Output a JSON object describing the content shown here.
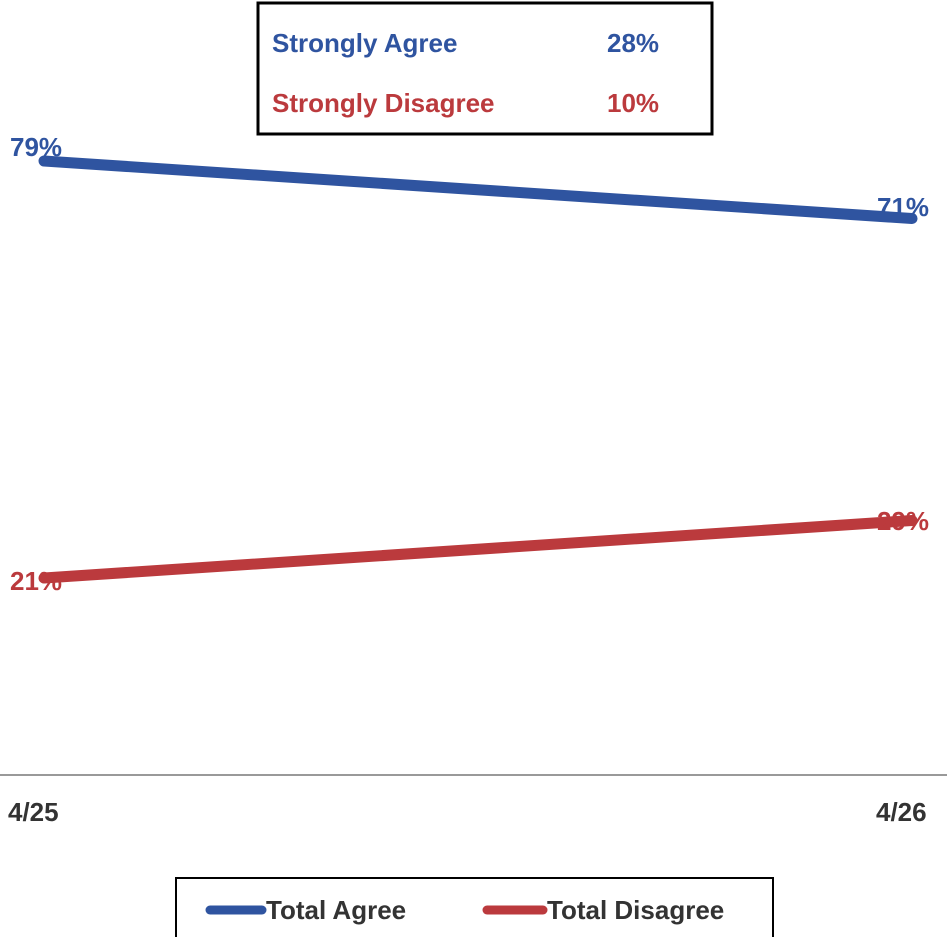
{
  "chart_data": {
    "type": "line",
    "categories": [
      "4/25",
      "4/26"
    ],
    "ylim": [
      0,
      100
    ],
    "grid": false,
    "legend_position": "bottom",
    "series": [
      {
        "name": "Total Agree",
        "values": [
          79,
          71
        ],
        "labels": [
          "79%",
          "71%"
        ],
        "color": "#2f54a0"
      },
      {
        "name": "Total Disagree",
        "values": [
          21,
          29
        ],
        "labels": [
          "21%",
          "29%"
        ],
        "color": "#bb3a3d"
      }
    ],
    "annotation_box": {
      "rows": [
        {
          "label": "Strongly Agree",
          "value": "28%",
          "color": "#2f54a0"
        },
        {
          "label": "Strongly Disagree",
          "value": "10%",
          "color": "#bb3a3d"
        }
      ]
    },
    "axis_color": "#999999"
  }
}
